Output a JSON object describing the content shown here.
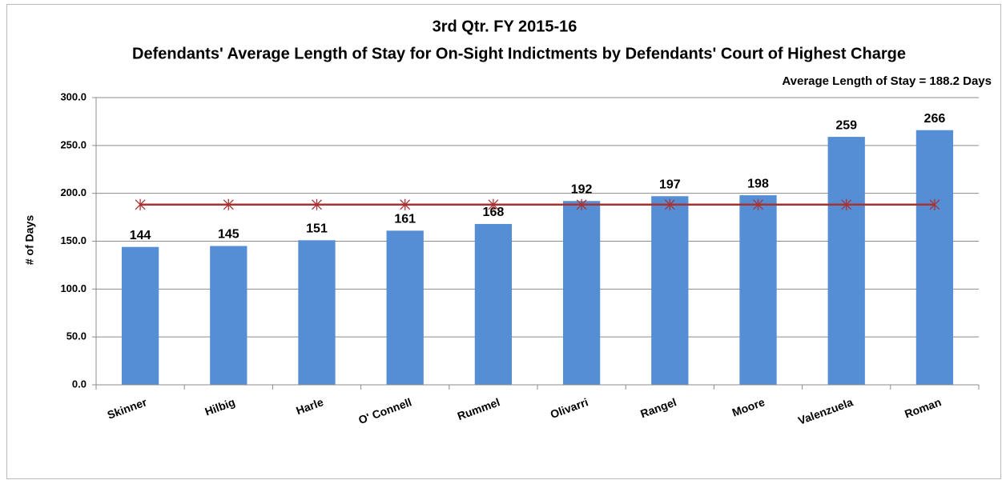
{
  "chart_data": {
    "type": "bar",
    "title": "3rd Qtr. FY 2015-16",
    "subtitle": "Defendants' Average Length of Stay for On-Sight Indictments by Defendants' Court of Highest Charge",
    "annotation": "Average Length of Stay = 188.2 Days",
    "y_label": "# of Days",
    "categories": [
      "Skinner",
      "Hilbig",
      "Harle",
      "O' Connell",
      "Rummel",
      "Olivarri",
      "Rangel",
      "Moore",
      "Valenzuela",
      "Roman"
    ],
    "values": [
      144,
      145,
      151,
      161,
      168,
      192,
      197,
      198,
      259,
      266
    ],
    "color": "#558ed5",
    "average_line": {
      "values": [
        188.2,
        188.2,
        188.2,
        188.2,
        188.2,
        188.2,
        188.2,
        188.2,
        188.2,
        188.2
      ],
      "color": "#a83232"
    },
    "ylim": [
      0,
      300
    ],
    "yticks": [
      {
        "value": 0,
        "label": "0.0"
      },
      {
        "value": 50,
        "label": "50.0"
      },
      {
        "value": 100,
        "label": "100.0"
      },
      {
        "value": 150,
        "label": "150.0"
      },
      {
        "value": 200,
        "label": "200.0"
      },
      {
        "value": 250,
        "label": "250.0"
      },
      {
        "value": 300,
        "label": "300.0"
      }
    ],
    "grid": true
  }
}
